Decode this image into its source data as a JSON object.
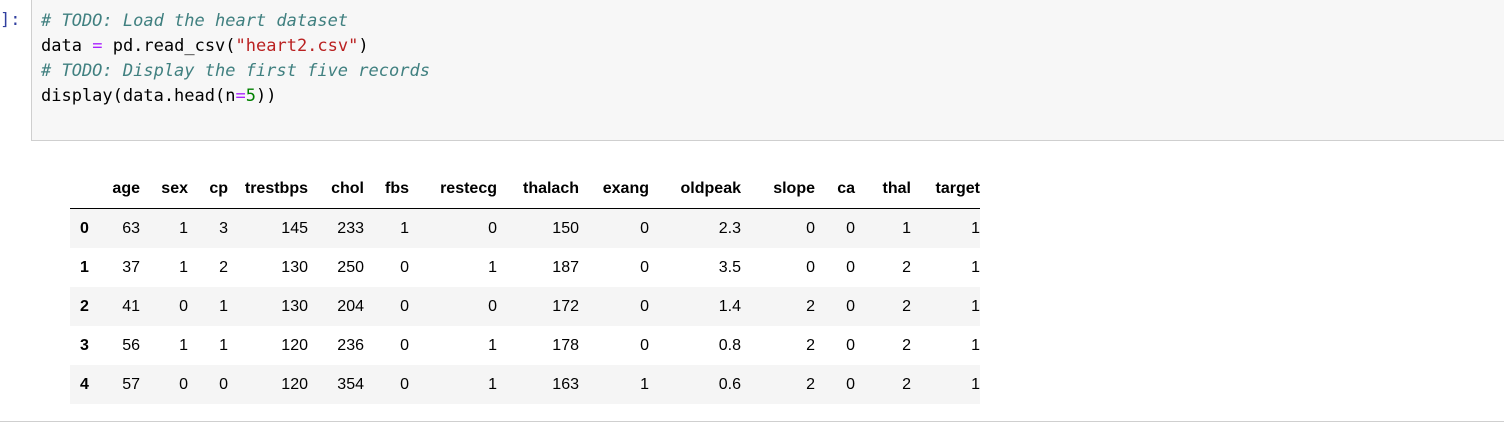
{
  "cell": {
    "prompt": "]:",
    "code_lines": [
      {
        "kind": "comment",
        "text": "# TODO: Load the heart dataset"
      },
      {
        "kind": "assign",
        "var": "data",
        "op": "=",
        "call": "pd.read_csv(",
        "str": "\"heart2.csv\"",
        "close": ")"
      },
      {
        "kind": "comment",
        "text": "# TODO: Display the first five records"
      },
      {
        "kind": "call",
        "pre": "display(data.head(n",
        "op": "=",
        "num": "5",
        "close": "))"
      }
    ]
  },
  "table": {
    "columns": [
      "",
      "age",
      "sex",
      "cp",
      "trestbps",
      "chol",
      "fbs",
      "restecg",
      "thalach",
      "exang",
      "oldpeak",
      "slope",
      "ca",
      "thal",
      "target"
    ],
    "rows": [
      {
        "index": "0",
        "cells": [
          "63",
          "1",
          "3",
          "145",
          "233",
          "1",
          "0",
          "150",
          "0",
          "2.3",
          "0",
          "0",
          "1",
          "1"
        ]
      },
      {
        "index": "1",
        "cells": [
          "37",
          "1",
          "2",
          "130",
          "250",
          "0",
          "1",
          "187",
          "0",
          "3.5",
          "0",
          "0",
          "2",
          "1"
        ]
      },
      {
        "index": "2",
        "cells": [
          "41",
          "0",
          "1",
          "130",
          "204",
          "0",
          "0",
          "172",
          "0",
          "1.4",
          "2",
          "0",
          "2",
          "1"
        ]
      },
      {
        "index": "3",
        "cells": [
          "56",
          "1",
          "1",
          "120",
          "236",
          "0",
          "1",
          "178",
          "0",
          "0.8",
          "2",
          "0",
          "2",
          "1"
        ]
      },
      {
        "index": "4",
        "cells": [
          "57",
          "0",
          "0",
          "120",
          "354",
          "0",
          "1",
          "163",
          "1",
          "0.6",
          "2",
          "0",
          "2",
          "1"
        ]
      }
    ]
  }
}
